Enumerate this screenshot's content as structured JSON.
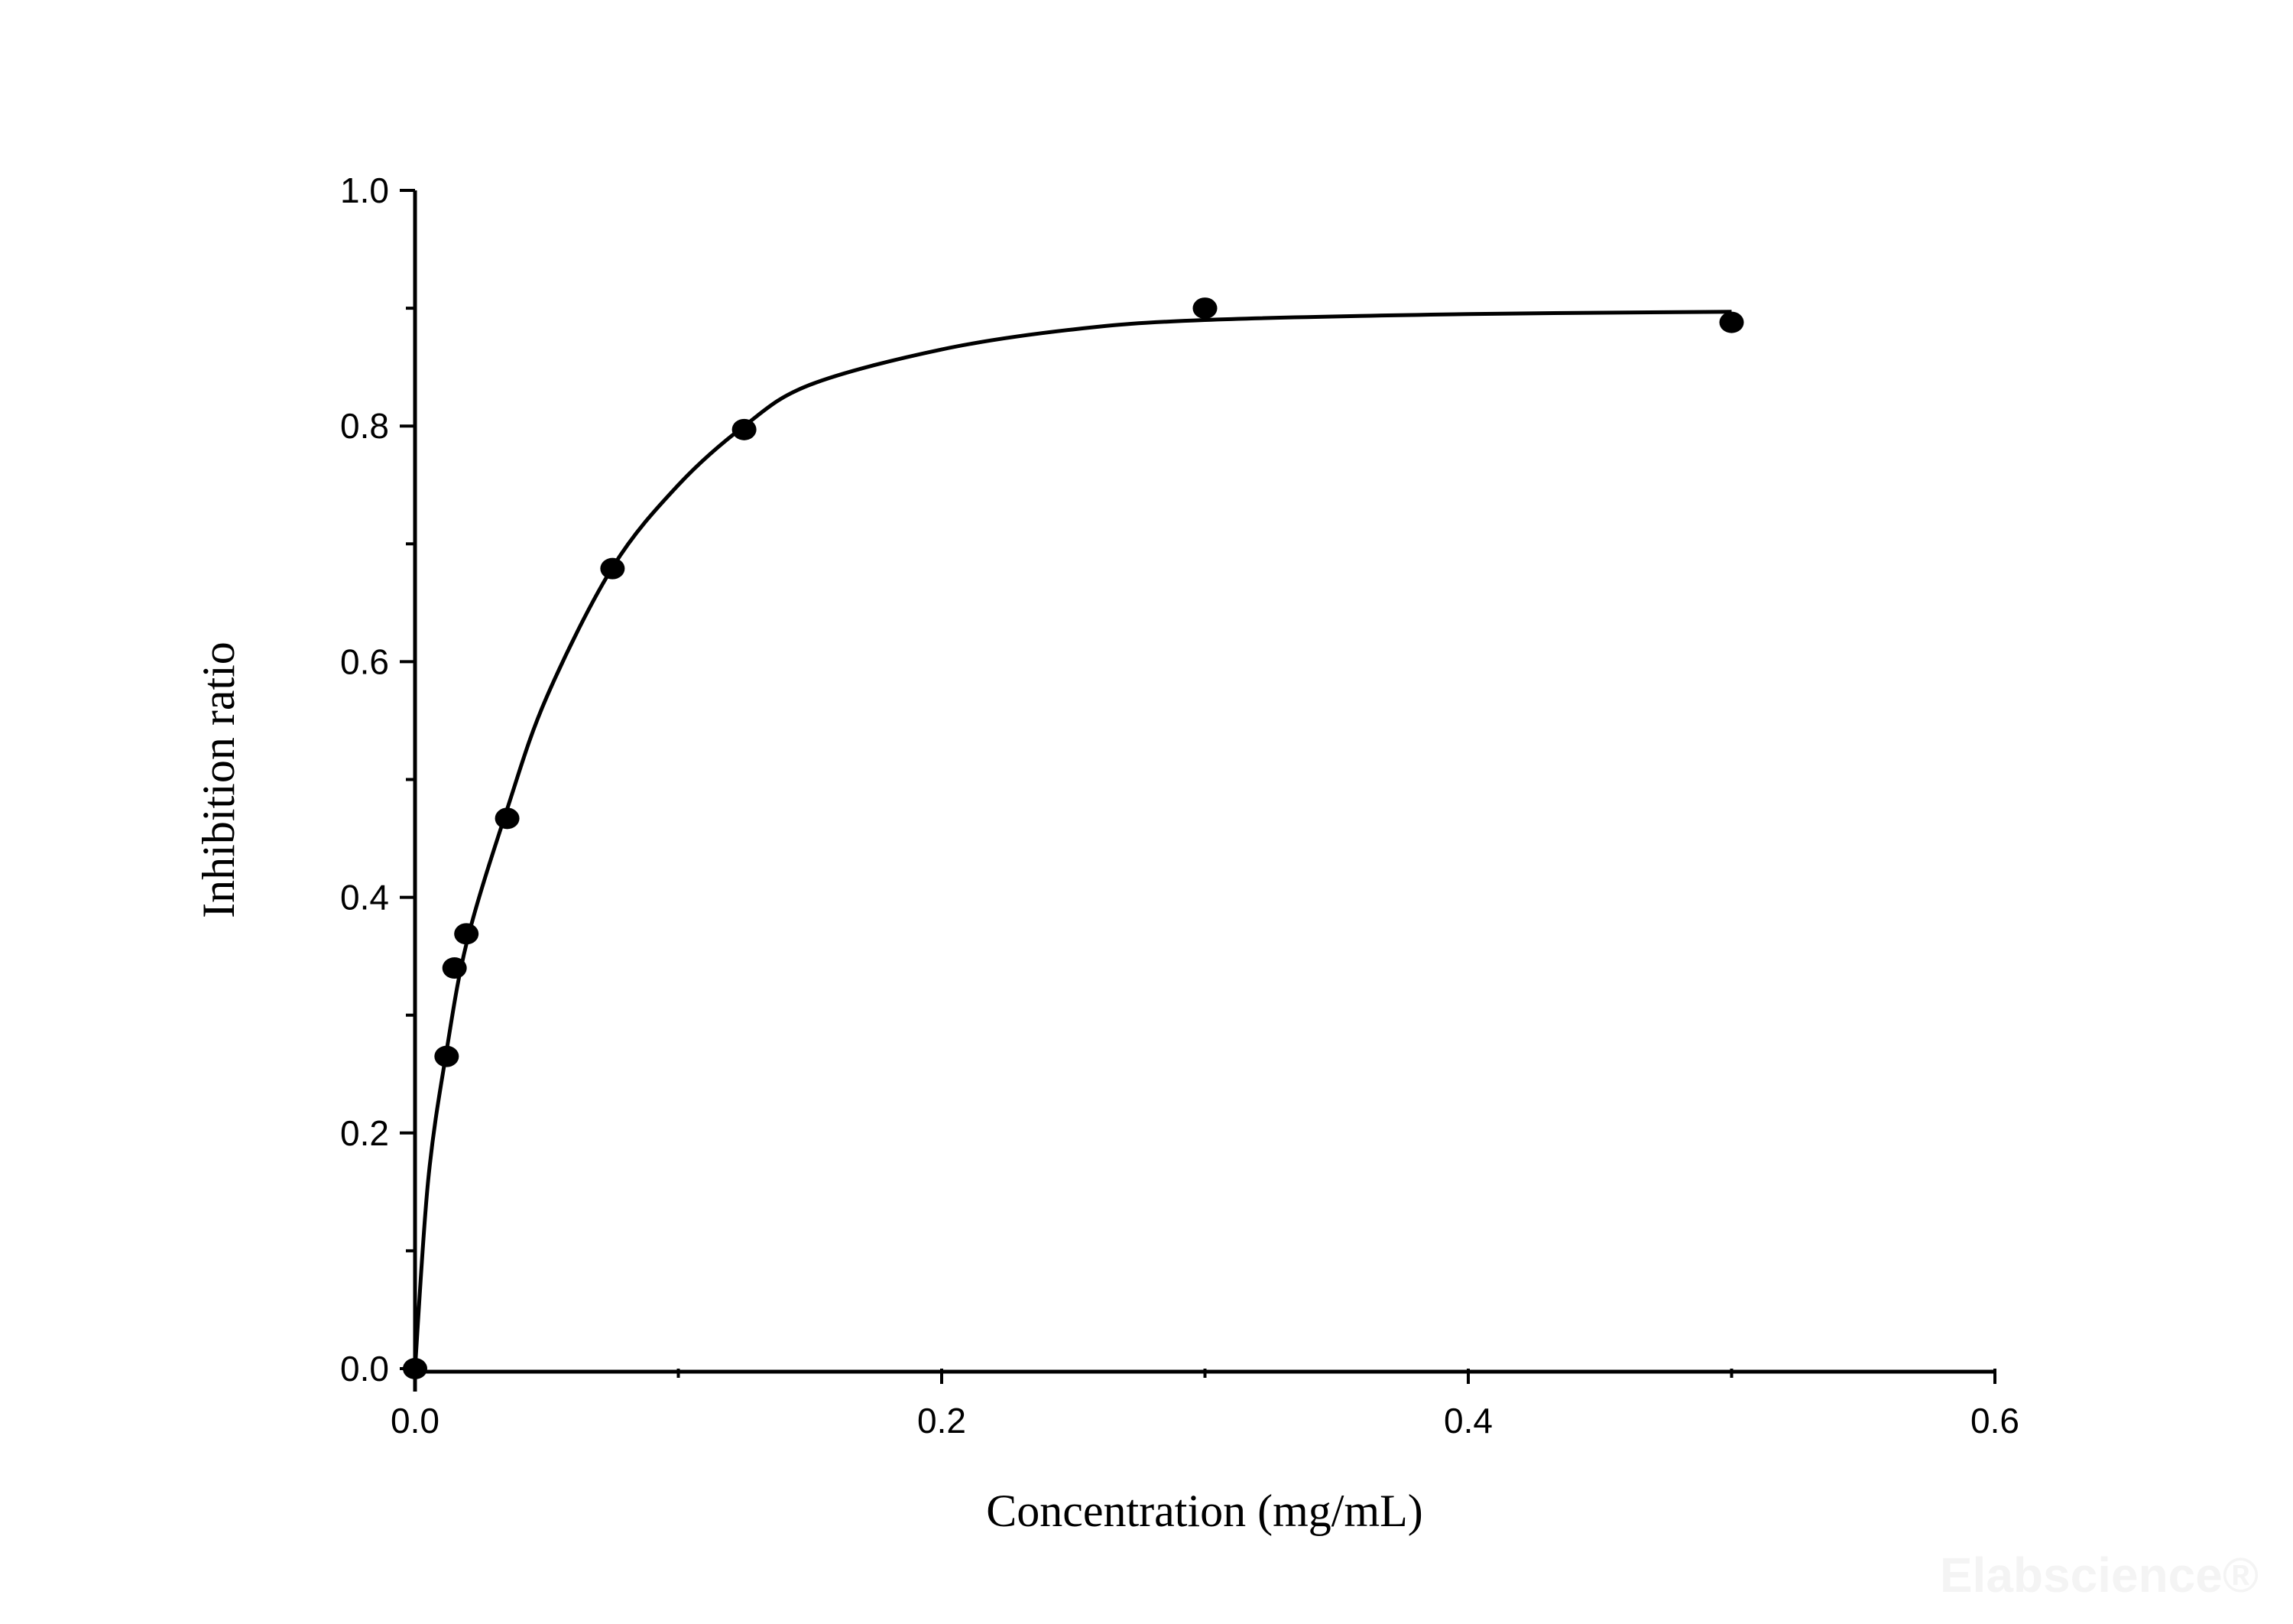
{
  "chart_data": {
    "type": "scatter",
    "title": "",
    "xlabel": "Concentration (mg/mL)",
    "ylabel": "Inhibition ratio",
    "xlim": [
      0,
      0.6
    ],
    "ylim": [
      0,
      1.0
    ],
    "x_ticks": [
      "0.0",
      "0.2",
      "0.4",
      "0.6"
    ],
    "y_ticks": [
      "0.0",
      "0.2",
      "0.4",
      "0.6",
      "0.8",
      "1.0"
    ],
    "x_tick_values": [
      0,
      0.2,
      0.4,
      0.6
    ],
    "y_tick_values": [
      0,
      0.2,
      0.4,
      0.6,
      0.8,
      1.0
    ],
    "grid": false,
    "points": {
      "x": [
        0,
        0.012,
        0.015,
        0.0195,
        0.035,
        0.075,
        0.125,
        0.3,
        0.5
      ],
      "y": [
        0,
        0.265,
        0.34,
        0.369,
        0.467,
        0.679,
        0.797,
        0.9,
        0.888
      ]
    },
    "fit_curve": {
      "x": [
        0,
        0.005,
        0.012,
        0.02,
        0.035,
        0.05,
        0.075,
        0.1,
        0.125,
        0.15,
        0.2,
        0.25,
        0.3,
        0.4,
        0.5
      ],
      "y": [
        0,
        0.16,
        0.27,
        0.365,
        0.475,
        0.57,
        0.68,
        0.75,
        0.8,
        0.835,
        0.865,
        0.882,
        0.89,
        0.895,
        0.897
      ]
    },
    "marker_color": "#000000",
    "line_color": "#000000"
  },
  "watermark": "Elabscience®"
}
